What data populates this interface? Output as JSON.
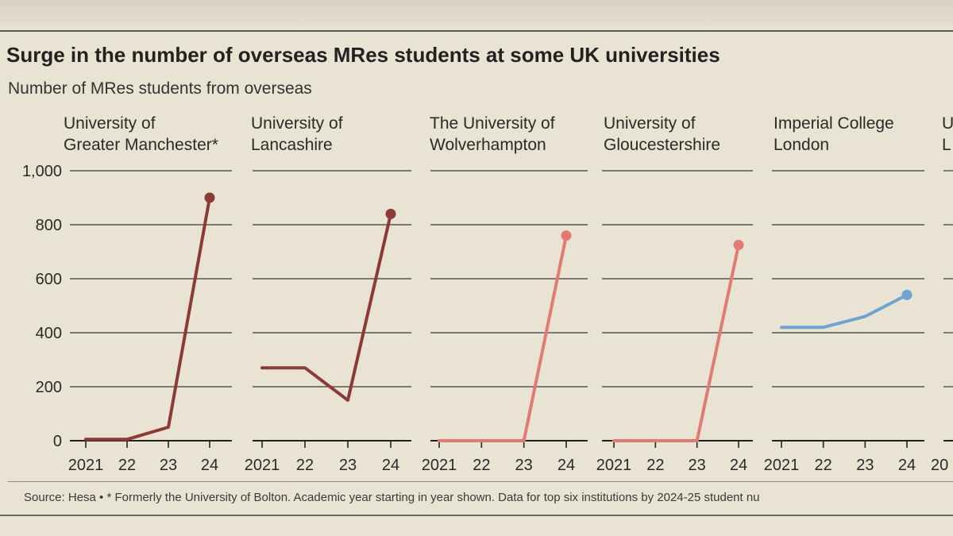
{
  "header_fragment": "",
  "title": "Surge in the number of overseas MRes students at some UK universities",
  "subtitle": "Number of MRes students from overseas",
  "source": "Source: Hesa • * Formerly the University of Bolton. Academic year starting in year shown. Data for top six institutions by 2024-25 student nu",
  "colors": {
    "dark_red": "#8c3a36",
    "pink": "#e27a72",
    "blue": "#6ea4cf",
    "gridline": "#3a3a3a"
  },
  "chart_data": {
    "type": "line",
    "title": "Surge in the number of overseas MRes students at some UK universities",
    "ylabel": "Number of MRes students from overseas",
    "ylim": [
      0,
      1000
    ],
    "yticks": [
      0,
      200,
      400,
      600,
      800,
      1000
    ],
    "ytick_labels": [
      "0",
      "200",
      "400",
      "600",
      "800",
      "1,000"
    ],
    "x": [
      2021,
      2022,
      2023,
      2024
    ],
    "xtick_labels": [
      "2021",
      "22",
      "23",
      "24"
    ],
    "series": [
      {
        "name": "University of\nGreater Manchester*",
        "color": "#8c3a36",
        "values": [
          5,
          5,
          50,
          900
        ]
      },
      {
        "name": "University of\nLancashire",
        "color": "#8c3a36",
        "values": [
          270,
          270,
          150,
          840
        ]
      },
      {
        "name": "The University of\nWolverhampton",
        "color": "#e27a72",
        "values": [
          0,
          0,
          0,
          760
        ]
      },
      {
        "name": "University of\nGloucestershire",
        "color": "#e27a72",
        "values": [
          0,
          0,
          0,
          725
        ]
      },
      {
        "name": "Imperial College\nLondon",
        "color": "#6ea4cf",
        "values": [
          420,
          420,
          460,
          540
        ]
      }
    ],
    "partial_panel": {
      "name": "U\nL",
      "first_xtick": "20"
    }
  }
}
